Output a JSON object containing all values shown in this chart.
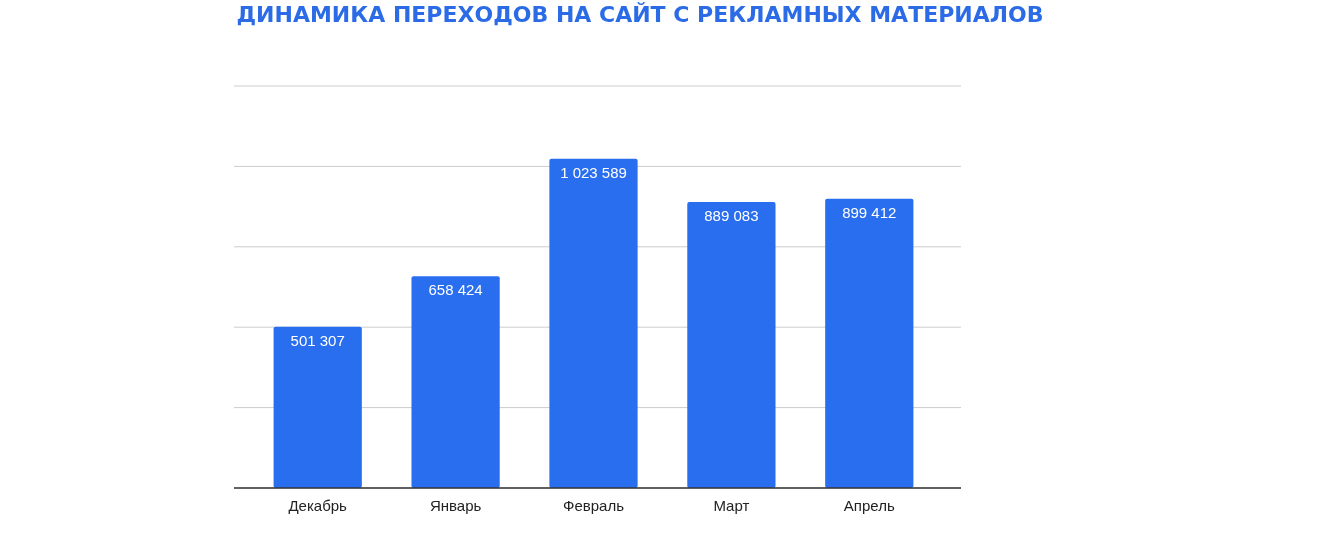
{
  "chart_data": {
    "type": "bar",
    "title": "ДИНАМИКА ПЕРЕХОДОВ НА САЙТ С РЕКЛАМНЫХ МАТЕРИАЛОВ",
    "categories": [
      "Декабрь",
      "Январь",
      "Февраль",
      "Март",
      "Апрель"
    ],
    "values": [
      501307,
      658424,
      1023589,
      889083,
      899412
    ],
    "value_labels": [
      "501 307",
      "658 424",
      "1 023 589",
      "889 083",
      "899 412"
    ],
    "color": "#2a6ef0",
    "ylim": [
      0,
      1250000
    ],
    "yticks": [
      {
        "value": 0,
        "label": null
      },
      {
        "value": 250000,
        "label": null
      },
      {
        "value": 500000,
        "label": null
      },
      {
        "value": 750000,
        "label": null
      },
      {
        "value": 1000000,
        "label": null
      },
      {
        "value": 1250000,
        "label": null
      }
    ],
    "grid": "y"
  }
}
